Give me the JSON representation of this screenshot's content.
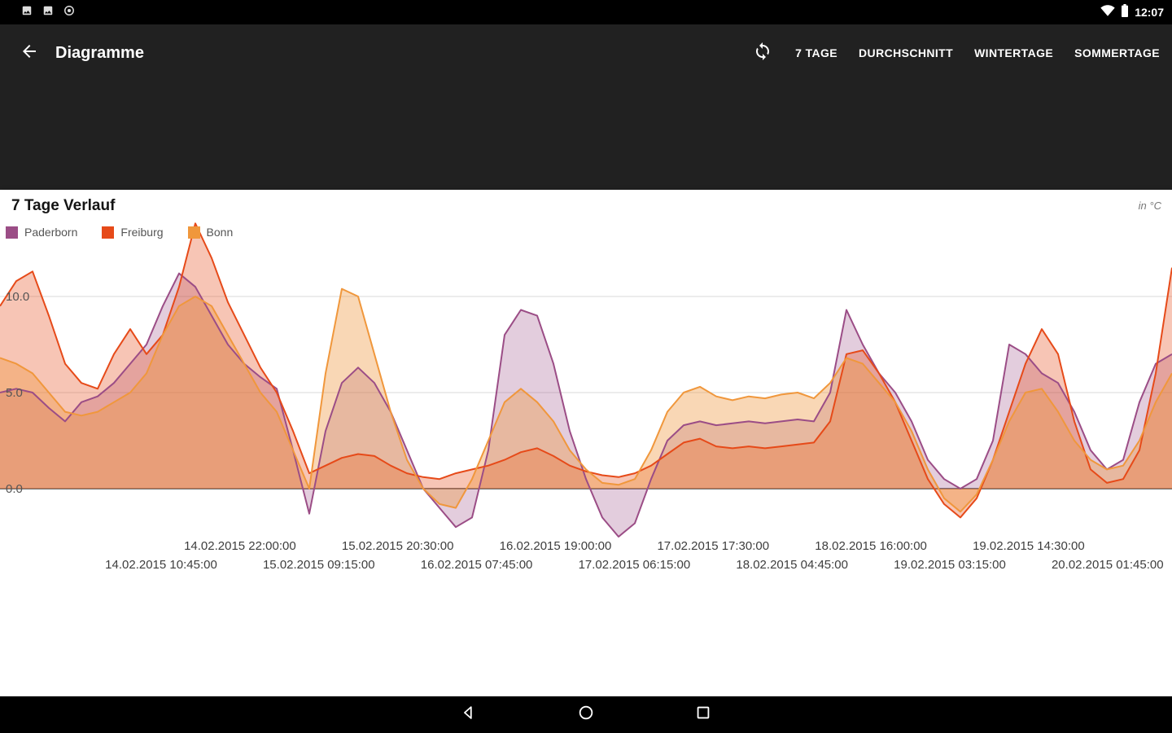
{
  "status_bar": {
    "time": "12:07",
    "left_icons": [
      "screenshot-notification-icon",
      "image-notification-icon",
      "circle-notification-icon"
    ],
    "right_icons": [
      "wifi-icon",
      "battery-icon"
    ]
  },
  "app_bar": {
    "title": "Diagramme",
    "back_icon": "arrow-back-icon",
    "refresh_icon": "sync-icon",
    "actions": [
      "7 TAGE",
      "DURCHSCHNITT",
      "WINTERTAGE",
      "SOMMERTAGE"
    ]
  },
  "chart_data": {
    "type": "area",
    "title": "7 Tage Verlauf",
    "unit_label": "in °C",
    "legend_position": "top-left",
    "grid": "horizontal",
    "ylim": [
      -3,
      15.5
    ],
    "y_ticks": [
      "10.0",
      "5.0",
      "0.0"
    ],
    "x_ticks": [
      "14.02.2015 10:45:00",
      "14.02.2015 22:00:00",
      "15.02.2015 09:15:00",
      "15.02.2015 20:30:00",
      "16.02.2015 07:45:00",
      "16.02.2015 19:00:00",
      "17.02.2015 06:15:00",
      "17.02.2015 17:30:00",
      "18.02.2015 04:45:00",
      "18.02.2015 16:00:00",
      "19.02.2015 03:15:00",
      "19.02.2015 14:30:00",
      "20.02.2015 01:45:00"
    ],
    "series": [
      {
        "name": "Paderborn",
        "color": "#9b4d86",
        "fill_opacity": 0.28,
        "values": [
          5.0,
          5.2,
          5.0,
          4.2,
          3.5,
          4.5,
          4.8,
          5.5,
          6.5,
          7.5,
          9.5,
          11.2,
          10.5,
          9.0,
          7.5,
          6.5,
          5.8,
          5.2,
          2.0,
          -1.3,
          3.0,
          5.5,
          6.3,
          5.5,
          4.0,
          2.0,
          0.0,
          -1.0,
          -2.0,
          -1.5,
          2.0,
          8.0,
          9.3,
          9.0,
          6.5,
          3.0,
          0.5,
          -1.5,
          -2.5,
          -1.8,
          0.5,
          2.5,
          3.3,
          3.5,
          3.3,
          3.4,
          3.5,
          3.4,
          3.5,
          3.6,
          3.5,
          5.0,
          9.3,
          7.5,
          6.0,
          5.0,
          3.5,
          1.5,
          0.5,
          0.0,
          0.5,
          2.5,
          7.5,
          7.0,
          6.0,
          5.5,
          4.0,
          2.0,
          1.0,
          1.5,
          4.5,
          6.5,
          7.0
        ]
      },
      {
        "name": "Freiburg",
        "color": "#e64a19",
        "fill_opacity": 0.32,
        "values": [
          9.5,
          10.8,
          11.3,
          9.0,
          6.5,
          5.5,
          5.2,
          7.0,
          8.3,
          7.0,
          8.0,
          10.5,
          13.8,
          12.0,
          9.7,
          8.0,
          6.3,
          5.0,
          3.0,
          0.8,
          1.2,
          1.6,
          1.8,
          1.7,
          1.2,
          0.8,
          0.6,
          0.5,
          0.8,
          1.0,
          1.2,
          1.5,
          1.9,
          2.1,
          1.7,
          1.2,
          0.9,
          0.7,
          0.6,
          0.8,
          1.2,
          1.8,
          2.4,
          2.6,
          2.2,
          2.1,
          2.2,
          2.1,
          2.2,
          2.3,
          2.4,
          3.5,
          7.0,
          7.2,
          6.0,
          4.5,
          2.5,
          0.5,
          -0.8,
          -1.5,
          -0.5,
          1.5,
          4.0,
          6.5,
          8.3,
          7.0,
          3.5,
          1.0,
          0.3,
          0.5,
          2.0,
          6.0,
          11.5
        ]
      },
      {
        "name": "Bonn",
        "color": "#f0973c",
        "fill_opacity": 0.38,
        "values": [
          6.8,
          6.5,
          6.0,
          5.0,
          4.0,
          3.8,
          4.0,
          4.5,
          5.0,
          6.0,
          8.0,
          9.5,
          10.0,
          9.5,
          8.0,
          6.5,
          5.0,
          4.0,
          2.0,
          0.0,
          6.0,
          10.4,
          10.0,
          7.0,
          4.0,
          1.5,
          0.0,
          -0.8,
          -1.0,
          0.5,
          2.5,
          4.5,
          5.2,
          4.5,
          3.5,
          2.0,
          1.0,
          0.3,
          0.2,
          0.5,
          2.0,
          4.0,
          5.0,
          5.3,
          4.8,
          4.6,
          4.8,
          4.7,
          4.9,
          5.0,
          4.7,
          5.5,
          6.8,
          6.5,
          5.5,
          4.5,
          3.0,
          1.0,
          -0.5,
          -1.2,
          -0.3,
          1.5,
          3.5,
          5.0,
          5.2,
          4.0,
          2.5,
          1.5,
          1.0,
          1.2,
          2.5,
          4.5,
          6.0
        ]
      }
    ]
  },
  "nav_bar": {
    "icons": [
      "back-icon",
      "home-icon",
      "recents-icon"
    ]
  }
}
